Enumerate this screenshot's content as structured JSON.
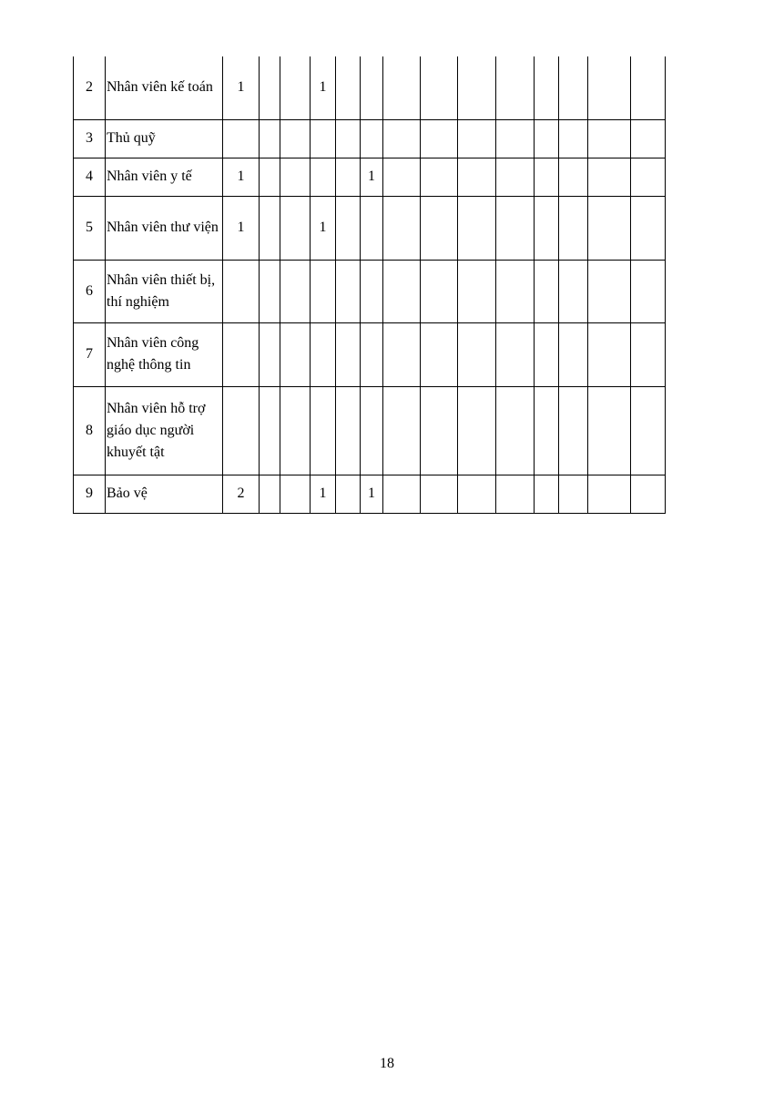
{
  "table": {
    "rows": [
      {
        "no": "2",
        "name": "Nhân viên kế toán",
        "values": [
          "1",
          "",
          "",
          "1",
          "",
          "",
          "",
          "",
          "",
          "",
          "",
          "",
          "",
          ""
        ]
      },
      {
        "no": "3",
        "name": "Thủ quỹ",
        "values": [
          "",
          "",
          "",
          "",
          "",
          "",
          "",
          "",
          "",
          "",
          "",
          "",
          "",
          ""
        ]
      },
      {
        "no": "4",
        "name": "Nhân viên y tế",
        "values": [
          "1",
          "",
          "",
          "",
          "",
          "1",
          "",
          "",
          "",
          "",
          "",
          "",
          "",
          ""
        ]
      },
      {
        "no": "5",
        "name": "Nhân viên thư viện",
        "values": [
          "1",
          "",
          "",
          "1",
          "",
          "",
          "",
          "",
          "",
          "",
          "",
          "",
          "",
          ""
        ]
      },
      {
        "no": "6",
        "name": "Nhân viên thiết bị, thí nghiệm",
        "values": [
          "",
          "",
          "",
          "",
          "",
          "",
          "",
          "",
          "",
          "",
          "",
          "",
          "",
          ""
        ]
      },
      {
        "no": "7",
        "name": "Nhân viên công nghệ thông tin",
        "values": [
          "",
          "",
          "",
          "",
          "",
          "",
          "",
          "",
          "",
          "",
          "",
          "",
          "",
          ""
        ]
      },
      {
        "no": "8",
        "name": "Nhân viên hỗ trợ giáo dục người khuyết tật",
        "values": [
          "",
          "",
          "",
          "",
          "",
          "",
          "",
          "",
          "",
          "",
          "",
          "",
          "",
          ""
        ]
      },
      {
        "no": "9",
        "name": "Bảo vệ",
        "values": [
          "2",
          "",
          "",
          "1",
          "",
          "1",
          "",
          "",
          "",
          "",
          "",
          "",
          "",
          ""
        ]
      }
    ]
  },
  "page_number": "18"
}
